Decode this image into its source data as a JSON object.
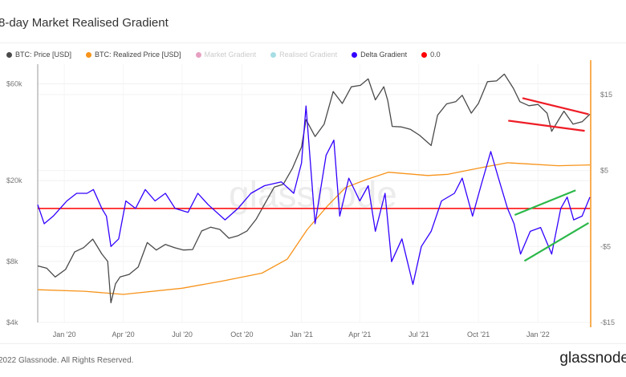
{
  "title": "8-day Market Realised Gradient",
  "footer": {
    "copyright": "2022 Glassnode. All Rights Reserved.",
    "brand": "glassnode"
  },
  "colors": {
    "price": "#4a4a4a",
    "realized": "#f7931a",
    "market": "#d6609a",
    "realised_gradient": "#6cc7d3",
    "delta": "#3300ff",
    "zero": "#ff0000",
    "trend_red": "#ee1c25",
    "trend_green": "#2db84a"
  },
  "legend": [
    {
      "label": "BTC: Price [USD]",
      "color": "#4a4a4a",
      "faded": false
    },
    {
      "label": "BTC: Realized Price [USD]",
      "color": "#f7931a",
      "faded": false
    },
    {
      "label": "Market Gradient",
      "color": "#d6609a",
      "faded": true
    },
    {
      "label": "Realised Gradient",
      "color": "#6cc7d3",
      "faded": true
    },
    {
      "label": "Delta Gradient",
      "color": "#3300ff",
      "faded": false
    },
    {
      "label": "0.0",
      "color": "#ff0000",
      "faded": false
    }
  ],
  "chart_data": {
    "type": "line",
    "title": "8-day Market Realised Gradient",
    "watermark": "glassnode",
    "x_range": [
      "2019-11-21",
      "2022-03-22"
    ],
    "x_ticks": [
      {
        "date": "2020-01-01",
        "label": "Jan '20"
      },
      {
        "date": "2020-04-01",
        "label": "Apr '20"
      },
      {
        "date": "2020-07-01",
        "label": "Jul '20"
      },
      {
        "date": "2020-10-01",
        "label": "Oct '20"
      },
      {
        "date": "2021-01-01",
        "label": "Jan '21"
      },
      {
        "date": "2021-04-01",
        "label": "Apr '21"
      },
      {
        "date": "2021-07-01",
        "label": "Jul '21"
      },
      {
        "date": "2021-10-01",
        "label": "Oct '21"
      },
      {
        "date": "2022-01-01",
        "label": "Jan '22"
      }
    ],
    "y_left": {
      "scale": "log",
      "range": [
        4000,
        75000
      ],
      "ticks": [
        {
          "v": 4000,
          "label": "$4k"
        },
        {
          "v": 8000,
          "label": "$8k"
        },
        {
          "v": 20000,
          "label": "$20k"
        },
        {
          "v": 60000,
          "label": "$60k"
        }
      ]
    },
    "y_right": {
      "scale": "linear",
      "range": [
        -15,
        19
      ],
      "ticks": [
        {
          "v": 15,
          "label": "$15"
        },
        {
          "v": 5,
          "label": "$5"
        },
        {
          "v": -5,
          "label": "-$5"
        },
        {
          "v": -15,
          "label": "-$15"
        }
      ]
    },
    "grid": true,
    "series": [
      {
        "name": "BTC: Price [USD]",
        "axis": "left",
        "points": [
          [
            "2019-11-21",
            7600
          ],
          [
            "2019-12-05",
            7400
          ],
          [
            "2019-12-18",
            6700
          ],
          [
            "2020-01-03",
            7300
          ],
          [
            "2020-01-17",
            8900
          ],
          [
            "2020-01-31",
            9350
          ],
          [
            "2020-02-14",
            10300
          ],
          [
            "2020-02-28",
            8700
          ],
          [
            "2020-03-08",
            8000
          ],
          [
            "2020-03-13",
            5000
          ],
          [
            "2020-03-20",
            6200
          ],
          [
            "2020-03-27",
            6700
          ],
          [
            "2020-04-10",
            6900
          ],
          [
            "2020-04-24",
            7500
          ],
          [
            "2020-05-08",
            9900
          ],
          [
            "2020-05-22",
            9100
          ],
          [
            "2020-06-05",
            9700
          ],
          [
            "2020-06-19",
            9350
          ],
          [
            "2020-07-03",
            9100
          ],
          [
            "2020-07-17",
            9150
          ],
          [
            "2020-07-31",
            11300
          ],
          [
            "2020-08-14",
            11800
          ],
          [
            "2020-08-28",
            11500
          ],
          [
            "2020-09-11",
            10400
          ],
          [
            "2020-09-25",
            10700
          ],
          [
            "2020-10-09",
            11300
          ],
          [
            "2020-10-23",
            12900
          ],
          [
            "2020-11-06",
            15500
          ],
          [
            "2020-11-20",
            18600
          ],
          [
            "2020-12-04",
            19200
          ],
          [
            "2020-12-18",
            23000
          ],
          [
            "2021-01-01",
            29300
          ],
          [
            "2021-01-08",
            40000
          ],
          [
            "2021-01-22",
            33000
          ],
          [
            "2021-02-05",
            38000
          ],
          [
            "2021-02-19",
            55000
          ],
          [
            "2021-03-05",
            48000
          ],
          [
            "2021-03-19",
            58000
          ],
          [
            "2021-04-02",
            59000
          ],
          [
            "2021-04-14",
            63500
          ],
          [
            "2021-04-25",
            50000
          ],
          [
            "2021-05-08",
            58000
          ],
          [
            "2021-05-14",
            49700
          ],
          [
            "2021-05-21",
            37000
          ],
          [
            "2021-06-04",
            36800
          ],
          [
            "2021-06-18",
            35800
          ],
          [
            "2021-07-02",
            33500
          ],
          [
            "2021-07-20",
            29800
          ],
          [
            "2021-07-30",
            42000
          ],
          [
            "2021-08-13",
            47800
          ],
          [
            "2021-08-27",
            49000
          ],
          [
            "2021-09-06",
            52700
          ],
          [
            "2021-09-20",
            43000
          ],
          [
            "2021-10-01",
            48000
          ],
          [
            "2021-10-15",
            61500
          ],
          [
            "2021-10-29",
            62000
          ],
          [
            "2021-11-10",
            67000
          ],
          [
            "2021-11-24",
            57000
          ],
          [
            "2021-12-04",
            49000
          ],
          [
            "2021-12-18",
            46800
          ],
          [
            "2022-01-01",
            47500
          ],
          [
            "2022-01-15",
            43000
          ],
          [
            "2022-01-22",
            35000
          ],
          [
            "2022-02-05",
            41500
          ],
          [
            "2022-02-10",
            44000
          ],
          [
            "2022-02-24",
            38000
          ],
          [
            "2022-03-10",
            39000
          ],
          [
            "2022-03-22",
            42500
          ]
        ]
      },
      {
        "name": "BTC: Realized Price [USD]",
        "axis": "left",
        "points": [
          [
            "2019-11-21",
            5800
          ],
          [
            "2020-02-01",
            5700
          ],
          [
            "2020-04-01",
            5500
          ],
          [
            "2020-07-01",
            5900
          ],
          [
            "2020-09-01",
            6400
          ],
          [
            "2020-11-01",
            7000
          ],
          [
            "2020-12-10",
            8200
          ],
          [
            "2021-01-10",
            11500
          ],
          [
            "2021-02-10",
            15000
          ],
          [
            "2021-03-10",
            18500
          ],
          [
            "2021-04-10",
            20200
          ],
          [
            "2021-05-15",
            22000
          ],
          [
            "2021-07-15",
            21200
          ],
          [
            "2021-08-15",
            21500
          ],
          [
            "2021-09-15",
            22500
          ],
          [
            "2021-10-15",
            23500
          ],
          [
            "2021-11-15",
            24500
          ],
          [
            "2021-12-15",
            24200
          ],
          [
            "2022-02-01",
            23700
          ],
          [
            "2022-03-22",
            23900
          ]
        ]
      },
      {
        "name": "Delta Gradient",
        "axis": "right",
        "points": [
          [
            "2019-11-21",
            0.5
          ],
          [
            "2019-12-01",
            -2
          ],
          [
            "2019-12-15",
            -1
          ],
          [
            "2020-01-05",
            1
          ],
          [
            "2020-01-20",
            2
          ],
          [
            "2020-02-05",
            2
          ],
          [
            "2020-02-15",
            2.5
          ],
          [
            "2020-02-28",
            0
          ],
          [
            "2020-03-06",
            -1
          ],
          [
            "2020-03-13",
            -5
          ],
          [
            "2020-03-25",
            -4
          ],
          [
            "2020-04-05",
            1
          ],
          [
            "2020-04-20",
            0
          ],
          [
            "2020-05-05",
            2.5
          ],
          [
            "2020-05-20",
            1
          ],
          [
            "2020-06-05",
            2
          ],
          [
            "2020-06-20",
            0
          ],
          [
            "2020-07-10",
            -0.5
          ],
          [
            "2020-07-25",
            2
          ],
          [
            "2020-08-10",
            0.5
          ],
          [
            "2020-09-05",
            -1.5
          ],
          [
            "2020-09-25",
            0
          ],
          [
            "2020-10-15",
            2
          ],
          [
            "2020-11-05",
            3
          ],
          [
            "2020-12-01",
            3.5
          ],
          [
            "2020-12-20",
            2
          ],
          [
            "2021-01-01",
            6
          ],
          [
            "2021-01-08",
            13.5
          ],
          [
            "2021-01-22",
            -2
          ],
          [
            "2021-02-08",
            7
          ],
          [
            "2021-02-20",
            9
          ],
          [
            "2021-03-01",
            -1
          ],
          [
            "2021-03-15",
            4
          ],
          [
            "2021-04-01",
            1
          ],
          [
            "2021-04-14",
            3
          ],
          [
            "2021-04-25",
            -3
          ],
          [
            "2021-05-10",
            2
          ],
          [
            "2021-05-20",
            -7
          ],
          [
            "2021-06-05",
            -4
          ],
          [
            "2021-06-22",
            -10
          ],
          [
            "2021-07-05",
            -5
          ],
          [
            "2021-07-20",
            -3
          ],
          [
            "2021-08-05",
            1
          ],
          [
            "2021-08-25",
            2
          ],
          [
            "2021-09-06",
            4
          ],
          [
            "2021-09-22",
            -1
          ],
          [
            "2021-10-05",
            3
          ],
          [
            "2021-10-20",
            7.5
          ],
          [
            "2021-11-01",
            4
          ],
          [
            "2021-11-15",
            0
          ],
          [
            "2021-11-25",
            -2
          ],
          [
            "2021-12-05",
            -6
          ],
          [
            "2021-12-20",
            -3
          ],
          [
            "2022-01-05",
            -2.5
          ],
          [
            "2022-01-22",
            -6
          ],
          [
            "2022-02-05",
            0
          ],
          [
            "2022-02-15",
            1.5
          ],
          [
            "2022-02-25",
            -1.5
          ],
          [
            "2022-03-10",
            -1
          ],
          [
            "2022-03-22",
            1.5
          ]
        ]
      },
      {
        "name": "0.0",
        "axis": "right",
        "points": [
          [
            "2019-11-21",
            0
          ],
          [
            "2022-03-22",
            0
          ]
        ]
      }
    ],
    "annotations": [
      {
        "color": "red",
        "axis": "left",
        "from": [
          "2021-12-08",
          51000
        ],
        "to": [
          "2022-03-20",
          42500
        ]
      },
      {
        "color": "red",
        "axis": "left",
        "from": [
          "2021-11-16",
          39500
        ],
        "to": [
          "2022-03-14",
          35200
        ]
      },
      {
        "color": "green",
        "axis": "right",
        "from": [
          "2021-11-26",
          -0.85
        ],
        "to": [
          "2022-02-28",
          2.4
        ]
      },
      {
        "color": "green",
        "axis": "right",
        "from": [
          "2021-12-11",
          -6.9
        ],
        "to": [
          "2022-03-20",
          -1.9
        ]
      }
    ]
  }
}
